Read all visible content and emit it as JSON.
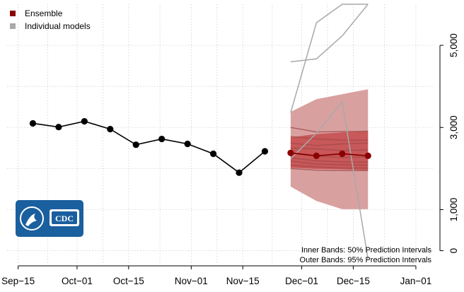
{
  "chart_data": {
    "type": "line",
    "grid": true,
    "legend": {
      "position": "top-left",
      "entries": [
        {
          "name": "Ensemble",
          "color": "#8b0000"
        },
        {
          "name": "Individual models",
          "color": "#a9a9a9"
        }
      ]
    },
    "x_axis": {
      "type": "date",
      "range": [
        "2020-09-12",
        "2021-01-06"
      ],
      "ticks": [
        {
          "date": "2020-09-15",
          "label": "Sep−15"
        },
        {
          "date": "2020-10-01",
          "label": "Oct−01"
        },
        {
          "date": "2020-10-15",
          "label": "Oct−15"
        },
        {
          "date": "2020-11-01",
          "label": "Nov−01"
        },
        {
          "date": "2020-11-15",
          "label": "Nov−15"
        },
        {
          "date": "2020-12-01",
          "label": "Dec−01"
        },
        {
          "date": "2020-12-15",
          "label": "Dec−15"
        },
        {
          "date": "2021-01-01",
          "label": "Jan−01"
        }
      ]
    },
    "y_axis": {
      "range": [
        -300,
        6000
      ],
      "position": "right",
      "ticks": [
        {
          "value": 0,
          "label": "0"
        },
        {
          "value": 1000,
          "label": "1,000"
        },
        {
          "value": 3000,
          "label": "3,000"
        },
        {
          "value": 5000,
          "label": "5,000"
        }
      ],
      "grid_values": [
        0,
        1000,
        2000,
        3000,
        4000,
        5000
      ]
    },
    "observed": {
      "color": "#000000",
      "points": [
        {
          "x": "2020-09-19",
          "y": 3100
        },
        {
          "x": "2020-09-26",
          "y": 3010
        },
        {
          "x": "2020-10-03",
          "y": 3150
        },
        {
          "x": "2020-10-10",
          "y": 2960
        },
        {
          "x": "2020-10-17",
          "y": 2580
        },
        {
          "x": "2020-10-24",
          "y": 2720
        },
        {
          "x": "2020-10-31",
          "y": 2600
        },
        {
          "x": "2020-11-07",
          "y": 2360
        },
        {
          "x": "2020-11-14",
          "y": 1900
        },
        {
          "x": "2020-11-21",
          "y": 2420
        }
      ]
    },
    "ensemble": {
      "color": "#8b0000",
      "points": [
        {
          "x": "2020-11-28",
          "y": 2380
        },
        {
          "x": "2020-12-05",
          "y": 2310
        },
        {
          "x": "2020-12-12",
          "y": 2360
        },
        {
          "x": "2020-12-19",
          "y": 2310
        }
      ],
      "band_50": {
        "color": "#c0393b",
        "lower": [
          2020,
          1990,
          1980,
          1960
        ],
        "upper": [
          2760,
          2840,
          2880,
          2910
        ]
      },
      "band_95": {
        "color": "#d9a0a0",
        "lower": [
          1560,
          1210,
          1010,
          1010
        ],
        "upper": [
          3380,
          3690,
          3810,
          3930
        ]
      }
    },
    "individual_models": {
      "gray_color": "#a9a9a9",
      "red_color": "#a14a4a",
      "x": [
        "2020-11-28",
        "2020-12-05",
        "2020-12-12",
        "2020-12-19"
      ],
      "gray_series": [
        [
          3360,
          5550,
          6200,
          6200
        ],
        [
          4600,
          4670,
          5230,
          6000
        ],
        [
          2240,
          2860,
          3620,
          -200
        ]
      ],
      "red_series": [
        [
          3000,
          2890,
          2900,
          2910
        ],
        [
          2780,
          2720,
          2690,
          2690
        ],
        [
          2620,
          2560,
          2600,
          2620
        ],
        [
          2500,
          2480,
          2440,
          2450
        ],
        [
          2380,
          2300,
          2270,
          2280
        ],
        [
          2260,
          2190,
          2160,
          2160
        ],
        [
          2180,
          2110,
          2090,
          2080
        ],
        [
          2080,
          2040,
          2010,
          2010
        ],
        [
          2000,
          1960,
          1950,
          1950
        ]
      ]
    },
    "annotations": [
      "Inner Bands: 50% Prediction Intervals",
      "Outer Bands: 95% Prediction Intervals"
    ],
    "logo": {
      "text": "CDC",
      "color": "#1a5f9e"
    }
  }
}
